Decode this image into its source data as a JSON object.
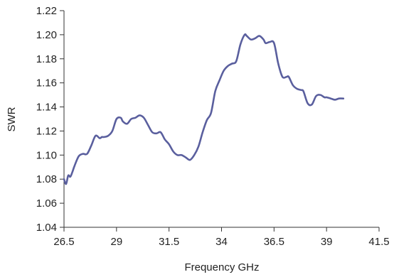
{
  "chart_data": {
    "type": "line",
    "title": "",
    "xlabel": "Frequency GHz",
    "ylabel": "SWR",
    "xlim": [
      26.5,
      41.5
    ],
    "ylim": [
      1.04,
      1.22
    ],
    "grid": false,
    "x_ticks": [
      26.5,
      29,
      31.5,
      34,
      36.5,
      39,
      41.5
    ],
    "x_tick_labels": [
      "26.5",
      "29",
      "31.5",
      "34",
      "36.5",
      "39",
      "41.5"
    ],
    "y_ticks": [
      1.04,
      1.06,
      1.08,
      1.1,
      1.12,
      1.14,
      1.16,
      1.18,
      1.2,
      1.22
    ],
    "y_tick_labels": [
      "1.04",
      "1.06",
      "1.08",
      "1.10",
      "1.12",
      "1.14",
      "1.16",
      "1.18",
      "1.20",
      "1.22"
    ],
    "series": [
      {
        "color": "#5a5f9e",
        "x": [
          26.5,
          26.6,
          26.7,
          26.8,
          26.9,
          27.0,
          27.2,
          27.4,
          27.6,
          27.8,
          28.0,
          28.2,
          28.3,
          28.4,
          28.6,
          28.8,
          29.0,
          29.2,
          29.3,
          29.5,
          29.7,
          29.9,
          30.1,
          30.3,
          30.5,
          30.7,
          30.9,
          31.1,
          31.3,
          31.5,
          31.7,
          31.9,
          32.1,
          32.3,
          32.5,
          32.7,
          32.9,
          33.1,
          33.3,
          33.5,
          33.7,
          33.9,
          34.1,
          34.3,
          34.5,
          34.7,
          34.9,
          35.1,
          35.2,
          35.4,
          35.6,
          35.8,
          36.0,
          36.1,
          36.3,
          36.5,
          36.7,
          36.9,
          37.1,
          37.2,
          37.4,
          37.6,
          37.8,
          37.9,
          38.1,
          38.3,
          38.5,
          38.7,
          38.9,
          39.0,
          39.2,
          39.4,
          39.6,
          39.8
        ],
        "y": [
          1.08,
          1.076,
          1.083,
          1.082,
          1.086,
          1.091,
          1.099,
          1.101,
          1.101,
          1.108,
          1.116,
          1.114,
          1.115,
          1.115,
          1.116,
          1.12,
          1.13,
          1.131,
          1.128,
          1.126,
          1.13,
          1.131,
          1.133,
          1.131,
          1.125,
          1.119,
          1.118,
          1.119,
          1.113,
          1.109,
          1.103,
          1.1,
          1.1,
          1.098,
          1.096,
          1.1,
          1.107,
          1.119,
          1.129,
          1.135,
          1.153,
          1.162,
          1.17,
          1.174,
          1.176,
          1.178,
          1.192,
          1.2,
          1.199,
          1.196,
          1.197,
          1.199,
          1.196,
          1.193,
          1.194,
          1.193,
          1.176,
          1.165,
          1.165,
          1.165,
          1.158,
          1.155,
          1.154,
          1.153,
          1.143,
          1.142,
          1.149,
          1.15,
          1.148,
          1.148,
          1.147,
          1.146,
          1.147,
          1.147
        ]
      }
    ]
  }
}
